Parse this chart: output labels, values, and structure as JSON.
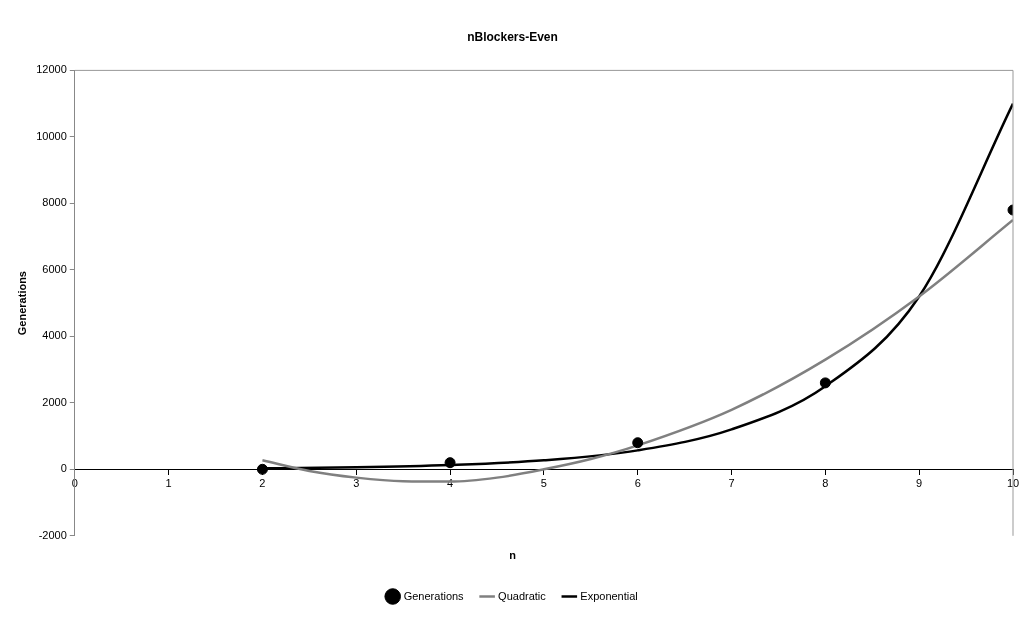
{
  "chart_data": {
    "type": "scatter",
    "title": "nBlockers-Even",
    "xlabel": "n",
    "ylabel": "Generations",
    "x": [
      2,
      4,
      6,
      8,
      10
    ],
    "xlim": [
      0,
      10
    ],
    "xticks": [
      0,
      1,
      2,
      3,
      4,
      5,
      6,
      7,
      8,
      9,
      10
    ],
    "ylim": [
      -2000,
      12000
    ],
    "yticks": [
      -2000,
      0,
      2000,
      4000,
      6000,
      8000,
      10000,
      12000
    ],
    "grid": false,
    "legend": "bottom",
    "series": [
      {
        "name": "Generations",
        "type": "scatter",
        "color": "#000000",
        "marker": "circle",
        "values": [
          0,
          200,
          800,
          2600,
          7800
        ]
      },
      {
        "name": "Quadratic",
        "type": "line",
        "color": "#808080",
        "x": [
          2,
          2.5,
          3,
          3.5,
          4,
          4.5,
          5,
          5.5,
          6,
          7,
          8,
          9,
          10
        ],
        "values": [
          270,
          -50,
          -250,
          -360,
          -370,
          -250,
          0,
          310,
          720,
          1790,
          3300,
          5200,
          7500
        ]
      },
      {
        "name": "Exponential",
        "type": "line",
        "color": "#000000",
        "x": [
          2,
          3,
          4,
          5,
          6,
          7,
          8,
          9,
          10
        ],
        "values": [
          30,
          60,
          130,
          270,
          570,
          1200,
          2500,
          5200,
          11000
        ]
      }
    ]
  }
}
